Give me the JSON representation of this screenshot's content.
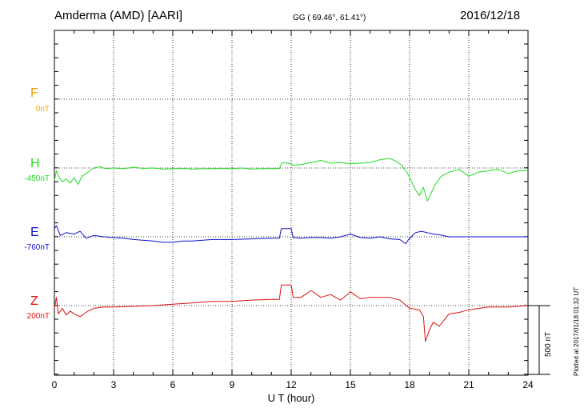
{
  "header": {
    "station": "Amderma (AMD)  [AARI]",
    "coords": "GG ( 69.46°,  61.41°)",
    "date": "2016/12/18"
  },
  "plotted_note": "Plotted at 2017/01/18 01:32 UT",
  "scale_label": "500 nT",
  "chart_data": {
    "type": "line",
    "xlabel": "U T (hour)",
    "xlim": [
      0,
      24
    ],
    "xticks": [
      "0",
      "3",
      "6",
      "9",
      "12",
      "15",
      "18",
      "21",
      "24"
    ],
    "grid": true,
    "components": [
      {
        "name": "F",
        "baseline": "0nT",
        "color": "#f5a000"
      },
      {
        "name": "H",
        "baseline": "-450nT",
        "color": "#22dd22"
      },
      {
        "name": "E",
        "baseline": "-760nT",
        "color": "#1010cc"
      },
      {
        "name": "Z",
        "baseline": "200nT",
        "color": "#dd1111"
      }
    ],
    "series": [
      {
        "name": "H",
        "color": "#22dd22",
        "x": [
          0,
          0.1,
          0.2,
          0.4,
          0.6,
          0.8,
          1.0,
          1.2,
          1.4,
          1.6,
          1.8,
          2.0,
          2.3,
          2.6,
          3.0,
          3.5,
          4.0,
          4.5,
          5.0,
          5.5,
          6.0,
          6.5,
          7.0,
          7.5,
          8.0,
          8.5,
          9.0,
          9.5,
          10.0,
          10.5,
          11.0,
          11.4,
          11.5,
          11.6,
          11.8,
          12.0,
          12.1,
          12.5,
          13.0,
          13.5,
          14.0,
          14.5,
          15.0,
          15.5,
          16.0,
          16.5,
          17.0,
          17.3,
          17.6,
          17.9,
          18.1,
          18.3,
          18.5,
          18.7,
          18.9,
          19.1,
          19.3,
          19.6,
          20.0,
          20.5,
          21.0,
          21.5,
          22.0,
          22.5,
          23.0,
          23.5,
          24.0
        ],
        "y": [
          -90,
          -20,
          -60,
          -100,
          -80,
          -110,
          -70,
          -120,
          -60,
          -40,
          -20,
          0,
          10,
          -5,
          0,
          -5,
          5,
          -3,
          0,
          -8,
          -5,
          -3,
          -8,
          -5,
          -5,
          -3,
          -5,
          0,
          -8,
          -5,
          -3,
          -5,
          30,
          40,
          35,
          30,
          20,
          25,
          40,
          55,
          35,
          40,
          30,
          35,
          40,
          60,
          70,
          50,
          20,
          -40,
          -100,
          -160,
          -200,
          -140,
          -240,
          -180,
          -120,
          -60,
          -30,
          -10,
          -60,
          -30,
          -20,
          -10,
          -40,
          -20,
          -20
        ]
      },
      {
        "name": "E",
        "color": "#1010cc",
        "x": [
          0,
          0.1,
          0.3,
          0.6,
          1.0,
          1.3,
          1.6,
          2.0,
          2.5,
          3.0,
          3.5,
          4.0,
          5.0,
          5.5,
          6.0,
          6.5,
          7.0,
          8.0,
          9.0,
          10.0,
          11.0,
          11.4,
          11.5,
          12.0,
          12.1,
          12.5,
          13.0,
          13.5,
          14.0,
          14.5,
          15.0,
          15.5,
          16.0,
          16.5,
          17.0,
          17.5,
          17.8,
          18.0,
          18.3,
          18.6,
          18.9,
          19.2,
          19.5,
          20.0,
          20.5,
          21.0,
          22.0,
          23.0,
          24.0
        ],
        "y": [
          60,
          80,
          10,
          30,
          20,
          40,
          -10,
          10,
          0,
          -5,
          -10,
          -20,
          -30,
          -40,
          -40,
          -30,
          -30,
          -20,
          -20,
          -15,
          -10,
          -10,
          60,
          60,
          -5,
          -10,
          -5,
          -5,
          -10,
          0,
          20,
          -5,
          -10,
          0,
          -15,
          -20,
          -50,
          -10,
          30,
          40,
          30,
          20,
          15,
          0,
          0,
          0,
          0,
          0,
          0
        ]
      },
      {
        "name": "Z",
        "color": "#dd1111",
        "x": [
          0,
          0.1,
          0.2,
          0.4,
          0.6,
          0.8,
          1.0,
          1.3,
          1.7,
          2.0,
          2.5,
          3.0,
          4.0,
          5.0,
          6.0,
          7.0,
          8.0,
          9.0,
          10.0,
          11.0,
          11.4,
          11.5,
          12.0,
          12.1,
          12.5,
          13.0,
          13.5,
          14.0,
          14.5,
          15.0,
          15.5,
          16.0,
          17.0,
          17.5,
          18.0,
          18.5,
          18.7,
          18.8,
          19.0,
          19.2,
          19.5,
          20.0,
          20.5,
          21.0,
          22.0,
          23.0,
          24.0
        ],
        "y": [
          -20,
          60,
          -60,
          -20,
          -70,
          -40,
          -60,
          -80,
          -40,
          -20,
          -10,
          -10,
          -5,
          0,
          10,
          20,
          30,
          30,
          40,
          45,
          45,
          150,
          150,
          60,
          60,
          110,
          60,
          80,
          40,
          100,
          50,
          60,
          60,
          40,
          -20,
          -30,
          -80,
          -260,
          -180,
          -120,
          -150,
          -60,
          -50,
          -30,
          -10,
          -10,
          0
        ]
      }
    ]
  }
}
